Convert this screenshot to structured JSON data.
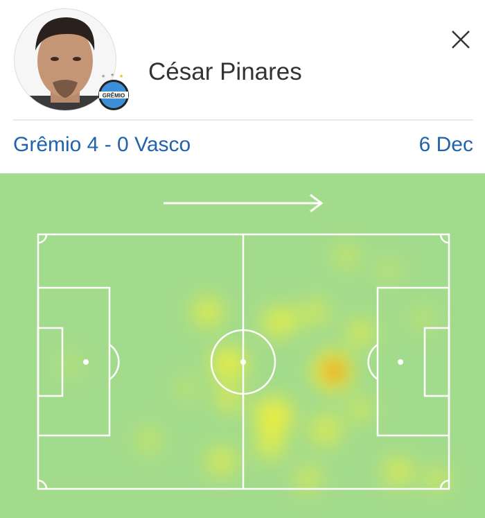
{
  "player": {
    "name": "César Pinares",
    "club_badge": "GRÊMIO"
  },
  "match": {
    "label": "Grêmio 4 - 0 Vasco",
    "date": "6 Dec"
  },
  "icons": {
    "close": "close-icon",
    "direction": "arrow-right-icon"
  },
  "colors": {
    "link": "#1f63ad",
    "pitch": "#a3db8c",
    "lines": "#ffffff",
    "heat_low": "#f2f03a",
    "heat_high": "#f08a10"
  }
}
